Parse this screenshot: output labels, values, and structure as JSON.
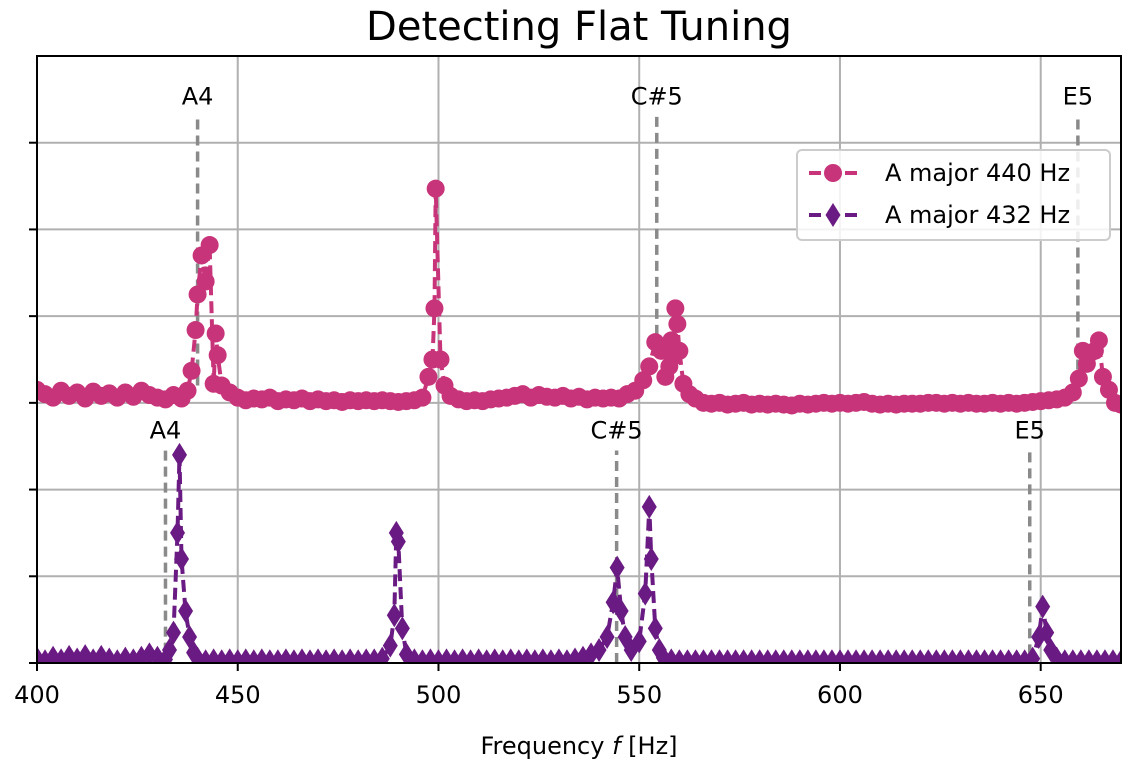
{
  "chart_data": {
    "type": "line",
    "title": "Detecting Flat Tuning",
    "xlabel": "Frequency f [Hz]",
    "xlabel_prefix": "Frequency ",
    "xlabel_var": "f",
    "xlabel_suffix": " [Hz]",
    "ylabel": "",
    "xlim": [
      400,
      670
    ],
    "ylim": [
      0,
      7
    ],
    "xticks": [
      400,
      450,
      500,
      550,
      600,
      650
    ],
    "xtick_labels": [
      "400",
      "450",
      "500",
      "550",
      "600",
      "650"
    ],
    "yticks": [
      0,
      1,
      2,
      3,
      4,
      5,
      6
    ],
    "show_ytick_labels": false,
    "grid": true,
    "legend_position": "upper-right",
    "series": [
      {
        "name": "A major 440 Hz",
        "color": "#c8347a",
        "marker": "circle",
        "linestyle": "dashed",
        "offset": 3.0,
        "points": [
          [
            400,
            3.15
          ],
          [
            402,
            3.1
          ],
          [
            404,
            3.06
          ],
          [
            406,
            3.14
          ],
          [
            408,
            3.08
          ],
          [
            410,
            3.12
          ],
          [
            412,
            3.05
          ],
          [
            414,
            3.13
          ],
          [
            416,
            3.08
          ],
          [
            418,
            3.11
          ],
          [
            420,
            3.06
          ],
          [
            422,
            3.12
          ],
          [
            424,
            3.07
          ],
          [
            426,
            3.14
          ],
          [
            428,
            3.09
          ],
          [
            430,
            3.06
          ],
          [
            432,
            3.04
          ],
          [
            434,
            3.09
          ],
          [
            436,
            3.05
          ],
          [
            437.5,
            3.14
          ],
          [
            438.5,
            3.37
          ],
          [
            439.5,
            3.84
          ],
          [
            440,
            4.25
          ],
          [
            441,
            4.7
          ],
          [
            442,
            4.4
          ],
          [
            443,
            4.82
          ],
          [
            444,
            3.22
          ],
          [
            444.5,
            3.8
          ],
          [
            445,
            3.55
          ],
          [
            446,
            3.2
          ],
          [
            448,
            3.12
          ],
          [
            450,
            3.06
          ],
          [
            452,
            3.03
          ],
          [
            454,
            3.05
          ],
          [
            456,
            3.04
          ],
          [
            458,
            3.06
          ],
          [
            460,
            3.02
          ],
          [
            462,
            3.04
          ],
          [
            464,
            3.03
          ],
          [
            466,
            3.05
          ],
          [
            468,
            3.02
          ],
          [
            470,
            3.04
          ],
          [
            472,
            3.02
          ],
          [
            474,
            3.03
          ],
          [
            476,
            3.01
          ],
          [
            478,
            3.03
          ],
          [
            480,
            3.02
          ],
          [
            482,
            3.03
          ],
          [
            484,
            3.02
          ],
          [
            486,
            3.03
          ],
          [
            488,
            3.02
          ],
          [
            490,
            3.01
          ],
          [
            492,
            3.02
          ],
          [
            494,
            3.03
          ],
          [
            496,
            3.06
          ],
          [
            497.5,
            3.3
          ],
          [
            498.5,
            3.5
          ],
          [
            499,
            4.09
          ],
          [
            499.3,
            5.47
          ],
          [
            500.5,
            3.5
          ],
          [
            501.5,
            3.2
          ],
          [
            503,
            3.08
          ],
          [
            505,
            3.04
          ],
          [
            507,
            3.02
          ],
          [
            509,
            3.03
          ],
          [
            511,
            3.02
          ],
          [
            513,
            3.04
          ],
          [
            515,
            3.05
          ],
          [
            517,
            3.06
          ],
          [
            519,
            3.08
          ],
          [
            521,
            3.1
          ],
          [
            523,
            3.06
          ],
          [
            525,
            3.09
          ],
          [
            527,
            3.07
          ],
          [
            529,
            3.06
          ],
          [
            531,
            3.08
          ],
          [
            533,
            3.05
          ],
          [
            535,
            3.07
          ],
          [
            537,
            3.04
          ],
          [
            539,
            3.06
          ],
          [
            541,
            3.05
          ],
          [
            543,
            3.06
          ],
          [
            545,
            3.05
          ],
          [
            547,
            3.1
          ],
          [
            549,
            3.14
          ],
          [
            551,
            3.26
          ],
          [
            552.5,
            3.42
          ],
          [
            554,
            3.7
          ],
          [
            555.5,
            3.6
          ],
          [
            556.5,
            3.3
          ],
          [
            557.5,
            3.42
          ],
          [
            558,
            3.72
          ],
          [
            558.5,
            3.53
          ],
          [
            559,
            4.09
          ],
          [
            559.5,
            3.91
          ],
          [
            560,
            3.6
          ],
          [
            561,
            3.22
          ],
          [
            562.5,
            3.1
          ],
          [
            564,
            3.05
          ],
          [
            566,
            3.0
          ],
          [
            568,
            2.99
          ],
          [
            570,
            3.0
          ],
          [
            572,
            2.98
          ],
          [
            574,
            2.99
          ],
          [
            576,
            3.0
          ],
          [
            578,
            2.98
          ],
          [
            580,
            2.99
          ],
          [
            582,
            2.98
          ],
          [
            584,
            2.99
          ],
          [
            586,
            2.98
          ],
          [
            588,
            2.97
          ],
          [
            590,
            2.99
          ],
          [
            592,
            2.98
          ],
          [
            594,
            2.99
          ],
          [
            596,
            3.0
          ],
          [
            598,
            2.99
          ],
          [
            600,
            3.0
          ],
          [
            602,
            2.99
          ],
          [
            604,
            3.0
          ],
          [
            606,
            3.01
          ],
          [
            608,
            2.99
          ],
          [
            610,
            2.98
          ],
          [
            612,
            2.99
          ],
          [
            614,
            2.98
          ],
          [
            616,
            2.99
          ],
          [
            618,
            2.99
          ],
          [
            620,
            2.99
          ],
          [
            622,
            3.0
          ],
          [
            624,
            3.0
          ],
          [
            626,
            2.99
          ],
          [
            628,
            3.0
          ],
          [
            630,
            2.99
          ],
          [
            632,
            3.0
          ],
          [
            634,
            2.99
          ],
          [
            636,
            2.99
          ],
          [
            638,
            3.0
          ],
          [
            640,
            2.99
          ],
          [
            642,
            3.0
          ],
          [
            644,
            2.99
          ],
          [
            646,
            3.0
          ],
          [
            648,
            3.01
          ],
          [
            650,
            3.02
          ],
          [
            652,
            3.03
          ],
          [
            654,
            3.04
          ],
          [
            656,
            3.06
          ],
          [
            658,
            3.12
          ],
          [
            659.5,
            3.28
          ],
          [
            660.5,
            3.6
          ],
          [
            661.5,
            3.45
          ],
          [
            662.5,
            3.58
          ],
          [
            663.5,
            3.6
          ],
          [
            664.5,
            3.72
          ],
          [
            665.5,
            3.3
          ],
          [
            667,
            3.15
          ],
          [
            668.5,
            3.0
          ],
          [
            670,
            2.98
          ]
        ]
      },
      {
        "name": "A major 432 Hz",
        "color": "#6a1a83",
        "marker": "diamond",
        "linestyle": "dashed",
        "offset": 0.0,
        "points": [
          [
            400,
            0.05
          ],
          [
            402,
            0.02
          ],
          [
            404,
            0.06
          ],
          [
            406,
            0.03
          ],
          [
            408,
            0.07
          ],
          [
            410,
            0.04
          ],
          [
            412,
            0.08
          ],
          [
            414,
            0.03
          ],
          [
            416,
            0.07
          ],
          [
            418,
            0.04
          ],
          [
            420,
            0.02
          ],
          [
            422,
            0.05
          ],
          [
            424,
            0.03
          ],
          [
            426,
            0.06
          ],
          [
            428,
            0.1
          ],
          [
            430,
            0.06
          ],
          [
            432,
            0.04
          ],
          [
            433,
            0.15
          ],
          [
            434,
            0.35
          ],
          [
            435,
            1.5
          ],
          [
            435.5,
            2.4
          ],
          [
            436,
            1.2
          ],
          [
            437,
            0.6
          ],
          [
            438,
            0.3
          ],
          [
            439,
            0.12
          ],
          [
            440,
            0.05
          ],
          [
            442,
            0.02
          ],
          [
            444,
            0.03
          ],
          [
            446,
            0.02
          ],
          [
            448,
            0.03
          ],
          [
            450,
            0.02
          ],
          [
            452,
            0.03
          ],
          [
            454,
            0.02
          ],
          [
            456,
            0.03
          ],
          [
            458,
            0.02
          ],
          [
            460,
            0.02
          ],
          [
            462,
            0.03
          ],
          [
            464,
            0.02
          ],
          [
            466,
            0.03
          ],
          [
            468,
            0.02
          ],
          [
            470,
            0.03
          ],
          [
            472,
            0.02
          ],
          [
            474,
            0.03
          ],
          [
            476,
            0.02
          ],
          [
            478,
            0.03
          ],
          [
            480,
            0.02
          ],
          [
            482,
            0.03
          ],
          [
            484,
            0.03
          ],
          [
            486,
            0.05
          ],
          [
            488,
            0.2
          ],
          [
            489,
            0.55
          ],
          [
            489.5,
            1.5
          ],
          [
            490,
            1.4
          ],
          [
            491,
            0.4
          ],
          [
            492,
            0.1
          ],
          [
            494,
            0.03
          ],
          [
            496,
            0.02
          ],
          [
            498,
            0.03
          ],
          [
            500,
            0.02
          ],
          [
            502,
            0.03
          ],
          [
            504,
            0.02
          ],
          [
            506,
            0.03
          ],
          [
            508,
            0.02
          ],
          [
            510,
            0.03
          ],
          [
            512,
            0.02
          ],
          [
            514,
            0.03
          ],
          [
            516,
            0.02
          ],
          [
            518,
            0.03
          ],
          [
            520,
            0.02
          ],
          [
            522,
            0.03
          ],
          [
            524,
            0.02
          ],
          [
            526,
            0.03
          ],
          [
            528,
            0.02
          ],
          [
            530,
            0.03
          ],
          [
            532,
            0.02
          ],
          [
            534,
            0.04
          ],
          [
            536,
            0.06
          ],
          [
            538,
            0.1
          ],
          [
            540,
            0.15
          ],
          [
            542,
            0.3
          ],
          [
            543.5,
            0.7
          ],
          [
            544.5,
            1.1
          ],
          [
            545.5,
            0.6
          ],
          [
            546.5,
            0.3
          ],
          [
            548,
            0.15
          ],
          [
            550,
            0.25
          ],
          [
            551.5,
            0.8
          ],
          [
            552.5,
            1.8
          ],
          [
            553,
            1.2
          ],
          [
            554,
            0.4
          ],
          [
            555,
            0.15
          ],
          [
            556,
            0.06
          ],
          [
            558,
            0.03
          ],
          [
            560,
            0.02
          ],
          [
            562,
            0.02
          ],
          [
            564,
            0.02
          ],
          [
            566,
            0.02
          ],
          [
            568,
            0.02
          ],
          [
            570,
            0.02
          ],
          [
            572,
            0.02
          ],
          [
            574,
            0.02
          ],
          [
            576,
            0.02
          ],
          [
            578,
            0.02
          ],
          [
            580,
            0.02
          ],
          [
            582,
            0.02
          ],
          [
            584,
            0.02
          ],
          [
            586,
            0.02
          ],
          [
            588,
            0.02
          ],
          [
            590,
            0.02
          ],
          [
            592,
            0.02
          ],
          [
            594,
            0.02
          ],
          [
            596,
            0.02
          ],
          [
            598,
            0.02
          ],
          [
            600,
            0.02
          ],
          [
            602,
            0.02
          ],
          [
            604,
            0.02
          ],
          [
            606,
            0.02
          ],
          [
            608,
            0.02
          ],
          [
            610,
            0.02
          ],
          [
            612,
            0.02
          ],
          [
            614,
            0.02
          ],
          [
            616,
            0.02
          ],
          [
            618,
            0.02
          ],
          [
            620,
            0.02
          ],
          [
            622,
            0.02
          ],
          [
            624,
            0.02
          ],
          [
            626,
            0.02
          ],
          [
            628,
            0.02
          ],
          [
            630,
            0.02
          ],
          [
            632,
            0.02
          ],
          [
            634,
            0.02
          ],
          [
            636,
            0.02
          ],
          [
            638,
            0.02
          ],
          [
            640,
            0.02
          ],
          [
            642,
            0.02
          ],
          [
            644,
            0.02
          ],
          [
            646,
            0.02
          ],
          [
            648,
            0.05
          ],
          [
            649.5,
            0.3
          ],
          [
            650.5,
            0.65
          ],
          [
            651.5,
            0.35
          ],
          [
            652.5,
            0.15
          ],
          [
            654,
            0.05
          ],
          [
            656,
            0.02
          ],
          [
            658,
            0.02
          ],
          [
            660,
            0.02
          ],
          [
            662,
            0.02
          ],
          [
            664,
            0.02
          ],
          [
            666,
            0.02
          ],
          [
            668,
            0.02
          ],
          [
            670,
            0.02
          ]
        ]
      }
    ],
    "annotations": [
      {
        "label": "A4",
        "x": 440,
        "y_bottom": 3.2,
        "y_top": 6.3
      },
      {
        "label": "C#5",
        "x": 554.37,
        "y_bottom": 3.6,
        "y_top": 6.3
      },
      {
        "label": "E5",
        "x": 659.26,
        "y_bottom": 3.2,
        "y_top": 6.3
      },
      {
        "label": "A4",
        "x": 432,
        "y_bottom": 0.12,
        "y_top": 2.45
      },
      {
        "label": "C#5",
        "x": 544.37,
        "y_bottom": 0.0,
        "y_top": 2.45
      },
      {
        "label": "E5",
        "x": 647.27,
        "y_bottom": 0.1,
        "y_top": 2.45
      }
    ],
    "annotation_line_color": "#8a8a8a"
  }
}
